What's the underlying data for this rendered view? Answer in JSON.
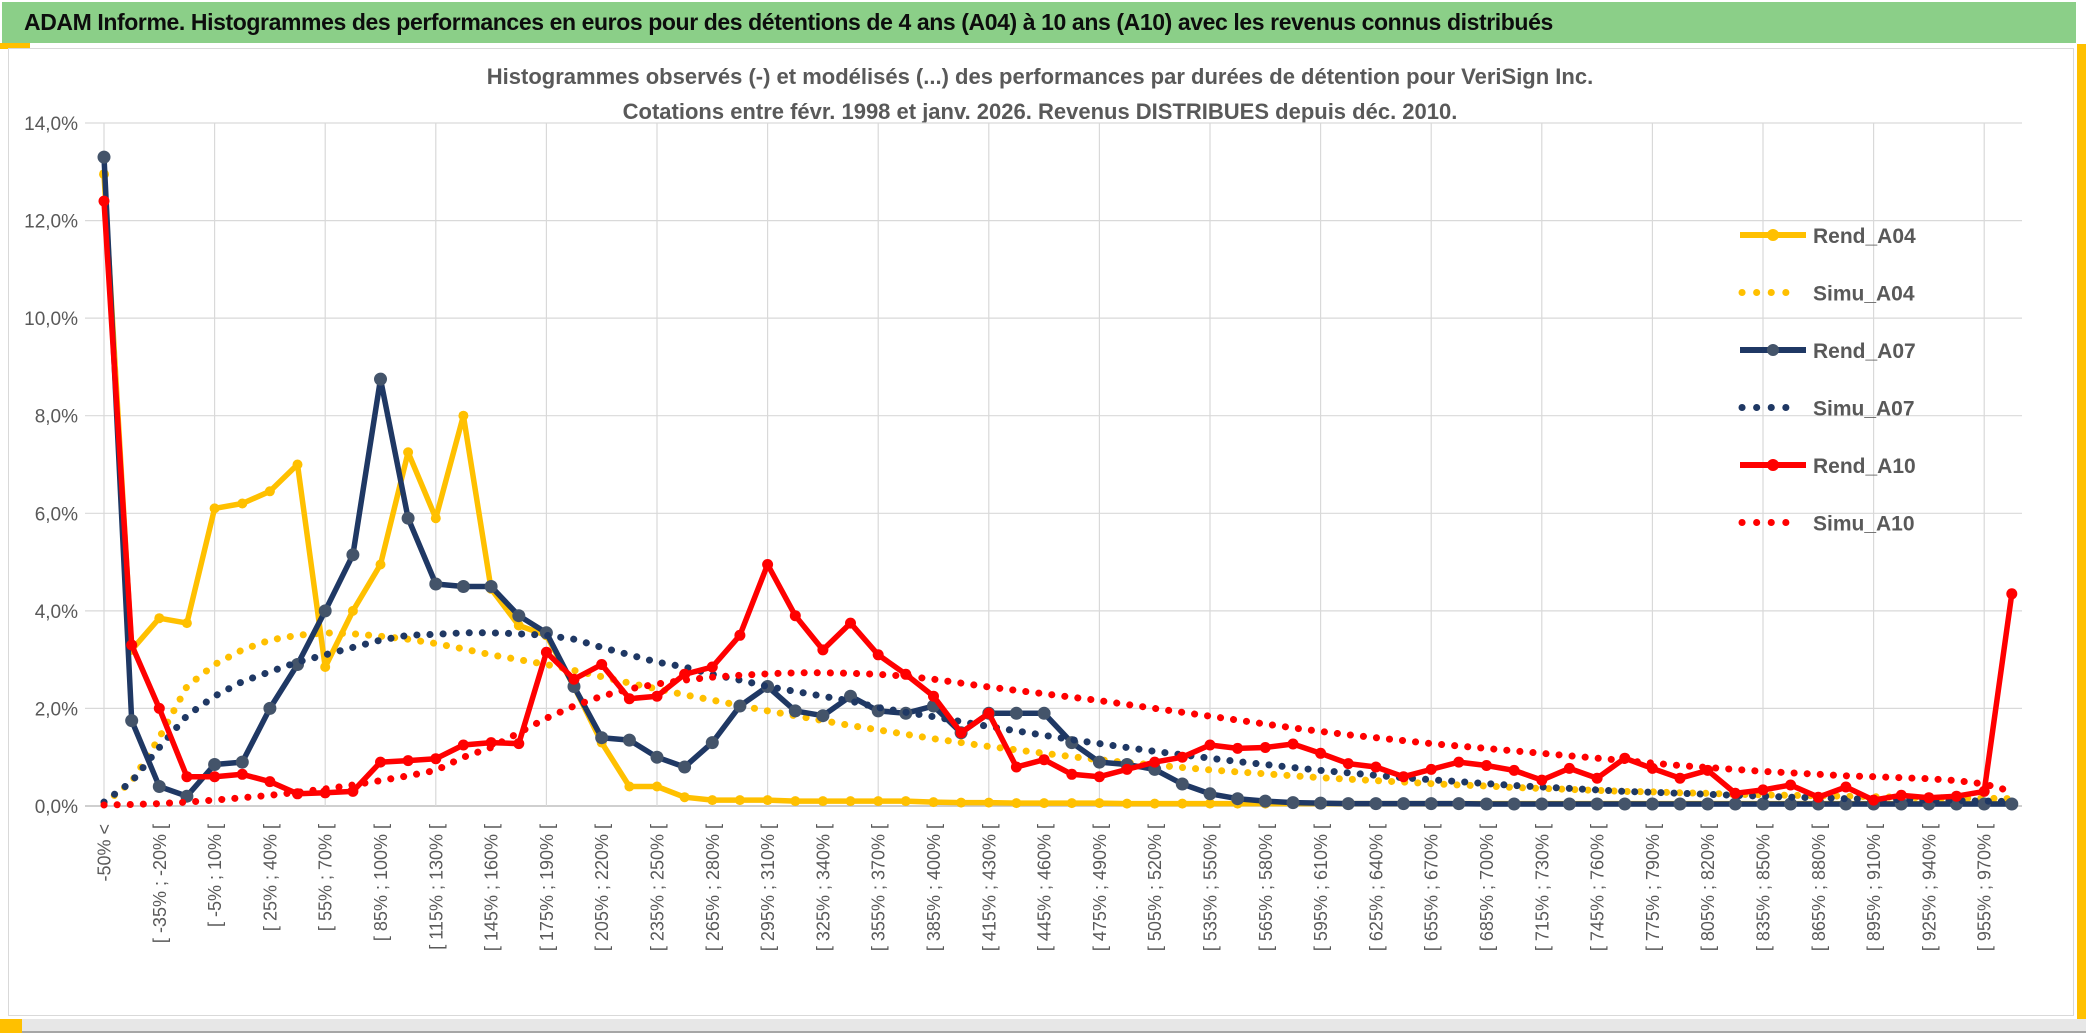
{
  "header": {
    "title": "ADAM Informe. Histogrammes des performances en euros pour des détentions de 4 ans (A04) à 10 ans (A10) avec les revenus connus distribués"
  },
  "colors": {
    "header_green": "#8BCF88",
    "accent_gold": "#FFC000",
    "series_gold": "#FFC000",
    "series_navy": "#1F3864",
    "navy_marker": "#44546A",
    "series_red": "#FF0000",
    "gridline": "#D9D9D9",
    "axis_text": "#595959"
  },
  "chart_data": {
    "type": "line",
    "title": "Histogrammes observés (-) et modélisés (...) des performances par durées de détention pour VeriSign Inc.",
    "subtitle": "Cotations entre févr. 1998 et janv. 2026. Revenus DISTRIBUES depuis déc. 2010.",
    "xlabel": "",
    "ylabel": "",
    "ylim": [
      0,
      14
    ],
    "unit": "%",
    "grid": true,
    "legend_position": "right",
    "ytick_labels": [
      "0,0%",
      "2,0%",
      "4,0%",
      "6,0%",
      "8,0%",
      "10,0%",
      "12,0%",
      "14,0%"
    ],
    "label_every_n_points": 2,
    "n_points": 70,
    "categories": [
      "-50% <",
      "[ -35% ; -20% [",
      "[ -5% ; 10% [",
      "[ 25% ; 40% [",
      "[ 55% ; 70% [",
      "[ 85% ; 100% [",
      "[ 115% ; 130% [",
      "[ 145% ; 160% [",
      "[ 175% ; 190% [",
      "[ 205% ; 220% [",
      "[ 235% ; 250% [",
      "[ 265% ; 280% [",
      "[ 295% ; 310% [",
      "[ 325% ; 340% [",
      "[ 355% ; 370% [",
      "[ 385% ; 400% [",
      "[ 415% ; 430% [",
      "[ 445% ; 460% [",
      "[ 475% ; 490% [",
      "[ 505% ; 520% [",
      "[ 535% ; 550% [",
      "[ 565% ; 580% [",
      "[ 595% ; 610% [",
      "[ 625% ; 640% [",
      "[ 655% ; 670% [",
      "[ 685% ; 700% [",
      "[ 715% ; 730% [",
      "[ 745% ; 760% [",
      "[ 775% ; 790% [",
      "[ 805% ; 820% [",
      "[ 835% ; 850% [",
      "[ 865% ; 880% [",
      "[ 895% ; 910% [",
      "[ 925% ; 940% [",
      "[ 955% ; 970% ["
    ],
    "series": [
      {
        "name": "Rend_A04",
        "style": "solid",
        "color": "#FFC000",
        "values": [
          12.95,
          3.2,
          3.85,
          3.75,
          6.1,
          6.2,
          6.45,
          7.0,
          2.85,
          4.0,
          4.95,
          7.25,
          5.9,
          8.0,
          4.45,
          3.7,
          3.5,
          2.45,
          1.3,
          0.4,
          0.4,
          0.18,
          0.12,
          0.12,
          0.12,
          0.1,
          0.1,
          0.1,
          0.1,
          0.1,
          0.08,
          0.07,
          0.07,
          0.06,
          0.06,
          0.06,
          0.06,
          0.05,
          0.05,
          0.05,
          0.05,
          0.05,
          0.05,
          0.05,
          0.05,
          0.05,
          0.05,
          0.05,
          0.05,
          0.05,
          0.05,
          0.05,
          0.05,
          0.05,
          0.05,
          0.05,
          0.05,
          0.05,
          0.05,
          0.05,
          0.05,
          0.05,
          0.05,
          0.05,
          0.05,
          0.05,
          0.05,
          0.05,
          0.05,
          0.05
        ]
      },
      {
        "name": "Simu_A04",
        "style": "dotted",
        "color": "#FFC000",
        "values": [
          0.05,
          0.5,
          1.4,
          2.45,
          2.9,
          3.2,
          3.4,
          3.5,
          3.55,
          3.53,
          3.48,
          3.42,
          3.33,
          3.22,
          3.1,
          3.0,
          2.9,
          2.78,
          2.65,
          2.52,
          2.4,
          2.28,
          2.17,
          2.06,
          1.95,
          1.85,
          1.75,
          1.65,
          1.56,
          1.47,
          1.38,
          1.3,
          1.22,
          1.15,
          1.08,
          1.01,
          0.95,
          0.89,
          0.84,
          0.79,
          0.74,
          0.7,
          0.66,
          0.62,
          0.58,
          0.55,
          0.52,
          0.49,
          0.46,
          0.43,
          0.41,
          0.38,
          0.36,
          0.34,
          0.32,
          0.3,
          0.29,
          0.27,
          0.26,
          0.24,
          0.23,
          0.22,
          0.21,
          0.2,
          0.19,
          0.18,
          0.17,
          0.16,
          0.16,
          0.15
        ]
      },
      {
        "name": "Rend_A07",
        "style": "solid",
        "color": "#1F3864",
        "marker_color": "#44546A",
        "values": [
          13.3,
          1.75,
          0.4,
          0.2,
          0.85,
          0.9,
          2.0,
          2.9,
          4.0,
          5.15,
          8.75,
          5.9,
          4.55,
          4.5,
          4.5,
          3.9,
          3.55,
          2.45,
          1.4,
          1.35,
          1.0,
          0.8,
          1.3,
          2.05,
          2.45,
          1.95,
          1.85,
          2.25,
          1.95,
          1.9,
          2.05,
          1.5,
          1.9,
          1.9,
          1.9,
          1.3,
          0.9,
          0.85,
          0.75,
          0.45,
          0.25,
          0.15,
          0.1,
          0.07,
          0.06,
          0.05,
          0.05,
          0.05,
          0.05,
          0.05,
          0.04,
          0.04,
          0.04,
          0.04,
          0.04,
          0.04,
          0.04,
          0.04,
          0.04,
          0.04,
          0.04,
          0.04,
          0.04,
          0.04,
          0.04,
          0.04,
          0.04,
          0.04,
          0.04,
          0.04
        ]
      },
      {
        "name": "Simu_A07",
        "style": "dotted",
        "color": "#1F3864",
        "values": [
          0.08,
          0.5,
          1.2,
          1.85,
          2.25,
          2.55,
          2.75,
          2.95,
          3.1,
          3.25,
          3.4,
          3.5,
          3.52,
          3.55,
          3.55,
          3.53,
          3.5,
          3.42,
          3.25,
          3.1,
          2.95,
          2.85,
          2.7,
          2.58,
          2.45,
          2.35,
          2.25,
          2.15,
          2.02,
          1.92,
          1.83,
          1.73,
          1.63,
          1.54,
          1.45,
          1.36,
          1.28,
          1.2,
          1.12,
          1.05,
          0.98,
          0.91,
          0.85,
          0.79,
          0.73,
          0.68,
          0.63,
          0.58,
          0.54,
          0.5,
          0.46,
          0.42,
          0.39,
          0.36,
          0.33,
          0.3,
          0.28,
          0.26,
          0.24,
          0.22,
          0.2,
          0.18,
          0.17,
          0.15,
          0.14,
          0.13,
          0.12,
          0.11,
          0.1,
          0.09
        ]
      },
      {
        "name": "Rend_A10",
        "style": "solid",
        "color": "#FF0000",
        "values": [
          12.4,
          3.3,
          2.0,
          0.6,
          0.6,
          0.65,
          0.5,
          0.25,
          0.27,
          0.3,
          0.9,
          0.93,
          0.97,
          1.25,
          1.3,
          1.28,
          3.15,
          2.6,
          2.9,
          2.2,
          2.25,
          2.7,
          2.85,
          3.5,
          4.95,
          3.9,
          3.2,
          3.75,
          3.1,
          2.7,
          2.25,
          1.5,
          1.9,
          0.8,
          0.95,
          0.65,
          0.6,
          0.75,
          0.9,
          1.0,
          1.25,
          1.18,
          1.2,
          1.27,
          1.08,
          0.87,
          0.8,
          0.6,
          0.75,
          0.9,
          0.83,
          0.73,
          0.53,
          0.77,
          0.57,
          0.98,
          0.77,
          0.57,
          0.73,
          0.26,
          0.33,
          0.43,
          0.18,
          0.39,
          0.12,
          0.22,
          0.17,
          0.2,
          0.3,
          4.35
        ]
      },
      {
        "name": "Simu_A10",
        "style": "dotted",
        "color": "#FF0000",
        "values": [
          0.02,
          0.03,
          0.05,
          0.08,
          0.12,
          0.17,
          0.22,
          0.28,
          0.35,
          0.43,
          0.52,
          0.62,
          0.73,
          1.0,
          1.2,
          1.5,
          1.8,
          2.05,
          2.25,
          2.4,
          2.5,
          2.58,
          2.64,
          2.68,
          2.71,
          2.73,
          2.73,
          2.72,
          2.7,
          2.66,
          2.6,
          2.52,
          2.44,
          2.37,
          2.3,
          2.23,
          2.16,
          2.08,
          2.0,
          1.92,
          1.84,
          1.76,
          1.68,
          1.6,
          1.53,
          1.46,
          1.4,
          1.34,
          1.28,
          1.23,
          1.18,
          1.13,
          1.08,
          1.03,
          0.98,
          0.93,
          0.88,
          0.83,
          0.79,
          0.75,
          0.71,
          0.68,
          0.65,
          0.62,
          0.6,
          0.58,
          0.56,
          0.52,
          0.45,
          0.3
        ]
      }
    ]
  }
}
